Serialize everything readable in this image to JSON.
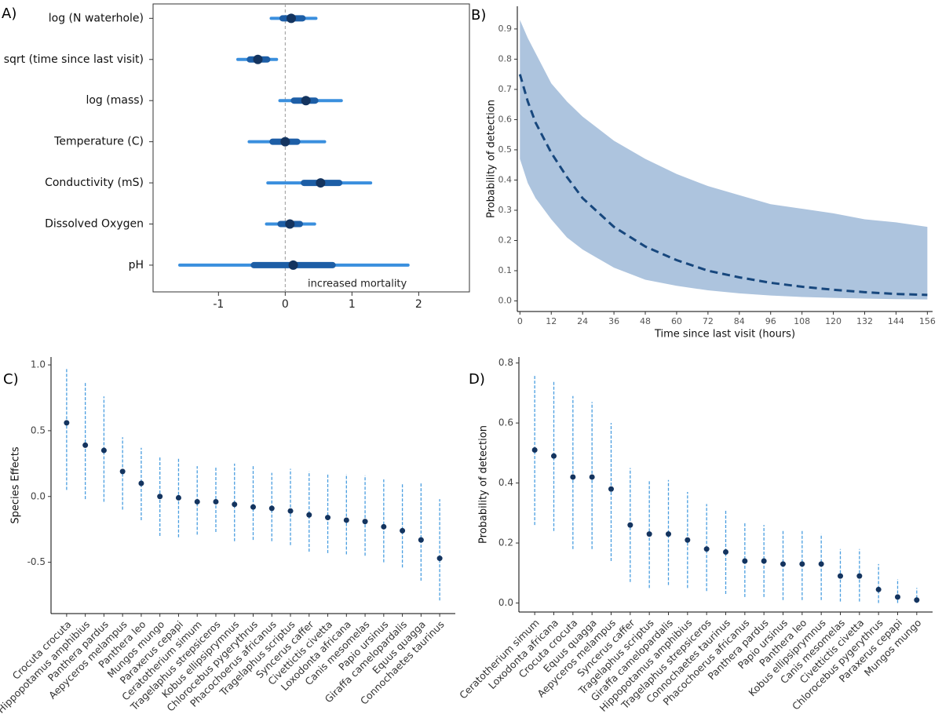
{
  "chart_data": [
    {
      "type": "forest",
      "panel_label": "A)",
      "categories": [
        "log (N waterhole)",
        "sqrt (time since last visit)",
        "log (mass)",
        "Temperature (C)",
        "Conductivity (mS)",
        "Dissolved Oxygen",
        "pH"
      ],
      "values": [
        0.09,
        -0.41,
        0.31,
        0.0,
        0.53,
        0.07,
        0.12
      ],
      "inner_interval": [
        [
          -0.04,
          0.26
        ],
        [
          -0.53,
          -0.27
        ],
        [
          0.13,
          0.45
        ],
        [
          -0.19,
          0.18
        ],
        [
          0.28,
          0.81
        ],
        [
          -0.07,
          0.22
        ],
        [
          -0.47,
          0.71
        ]
      ],
      "outer_interval": [
        [
          -0.21,
          0.46
        ],
        [
          -0.71,
          -0.13
        ],
        [
          -0.08,
          0.84
        ],
        [
          -0.54,
          0.59
        ],
        [
          -0.26,
          1.28
        ],
        [
          -0.28,
          0.44
        ],
        [
          -1.58,
          1.84
        ]
      ],
      "xlim": [
        -1.98,
        2.76
      ],
      "xticks": [
        -1,
        0,
        1,
        2
      ],
      "annotation": "increased mortality",
      "zero_line": true,
      "colors": {
        "outer": "#3a8fde",
        "inner": "#1d5ea6",
        "point": "#14345f"
      }
    },
    {
      "type": "line",
      "panel_label": "B)",
      "x": [
        0,
        3,
        6,
        12,
        18,
        24,
        36,
        48,
        60,
        72,
        84,
        96,
        108,
        120,
        132,
        144,
        156
      ],
      "values": [
        0.75,
        0.66,
        0.59,
        0.49,
        0.41,
        0.34,
        0.245,
        0.18,
        0.135,
        0.1,
        0.078,
        0.06,
        0.047,
        0.037,
        0.029,
        0.023,
        0.02
      ],
      "upper": [
        0.93,
        0.87,
        0.82,
        0.72,
        0.66,
        0.61,
        0.53,
        0.47,
        0.42,
        0.38,
        0.35,
        0.32,
        0.305,
        0.29,
        0.27,
        0.26,
        0.245
      ],
      "lower": [
        0.47,
        0.39,
        0.34,
        0.27,
        0.21,
        0.17,
        0.11,
        0.07,
        0.05,
        0.035,
        0.025,
        0.018,
        0.013,
        0.01,
        0.008,
        0.006,
        0.005
      ],
      "color": "#17477d",
      "band_color": "#adc4de",
      "xlabel": "Time since last visit (hours)",
      "ylabel": "Probability of detection",
      "xlim": [
        -1,
        158
      ],
      "ylim": [
        -0.035,
        0.975
      ],
      "xticks": [
        0,
        12,
        24,
        36,
        48,
        60,
        72,
        84,
        96,
        108,
        120,
        132,
        144,
        156
      ],
      "yticks": [
        {
          "value": 0,
          "label": "0.0"
        },
        0.1,
        0.2,
        0.3,
        0.4,
        0.5,
        0.6,
        0.7,
        0.8,
        0.9
      ]
    },
    {
      "type": "pointrange",
      "panel_label": "C)",
      "categories": [
        "Crocuta crocuta",
        "Hippopotamus amphibius",
        "Panthera pardus",
        "Aepyceros melampus",
        "Panthera leo",
        "Mungos mungo",
        "Paraxerus cepapi",
        "Ceratotherium simum",
        "Tragelaphus strepsiceros",
        "Kobus ellipsiprymnus",
        "Chlorocebus pygerythrus",
        "Phacochoerus africanus",
        "Tragelaphus scriptus",
        "Syncerus caffer",
        "Civettictis civetta",
        "Loxodonta africana",
        "Canis mesomelas",
        "Papio ursinus",
        "Giraffa camelopardalis",
        "Equus quagga",
        "Connochaetes taurinus"
      ],
      "values": [
        0.56,
        0.39,
        0.35,
        0.19,
        0.1,
        0.0,
        -0.01,
        -0.04,
        -0.04,
        -0.06,
        -0.08,
        -0.09,
        -0.11,
        -0.14,
        -0.16,
        -0.18,
        -0.19,
        -0.23,
        -0.26,
        -0.33,
        -0.47
      ],
      "lower": [
        0.05,
        -0.02,
        -0.04,
        -0.1,
        -0.18,
        -0.3,
        -0.31,
        -0.29,
        -0.27,
        -0.34,
        -0.33,
        -0.34,
        -0.37,
        -0.42,
        -0.43,
        -0.44,
        -0.45,
        -0.5,
        -0.54,
        -0.64,
        -0.79
      ],
      "upper": [
        0.97,
        0.87,
        0.76,
        0.45,
        0.37,
        0.3,
        0.29,
        0.23,
        0.23,
        0.25,
        0.23,
        0.18,
        0.21,
        0.19,
        0.17,
        0.17,
        0.16,
        0.13,
        0.1,
        0.1,
        -0.02
      ],
      "ylabel": "Species Effects",
      "ylim": [
        -0.89,
        1.06
      ],
      "yticks": [
        -0.5,
        {
          "value": 0,
          "label": "0.0"
        },
        0.5,
        {
          "value": 1,
          "label": "1.0"
        }
      ],
      "colors": {
        "point": "#14345f",
        "interval": "#4a9ee0"
      }
    },
    {
      "type": "pointrange",
      "panel_label": "D)",
      "categories": [
        "Ceratotherium simum",
        "Loxodonta africana",
        "Crocuta crocuta",
        "Equus quagga",
        "Aepyceros melampus",
        "Syncerus caffer",
        "Tragelaphus scriptus",
        "Giraffa camelopardalis",
        "Hippopotamus amphibius",
        "Tragelaphus strepsiceros",
        "Connochaetes taurinus",
        "Phacochoerus africanus",
        "Panthera pardus",
        "Papio ursinus",
        "Panthera leo",
        "Kobus ellipsiprymnus",
        "Canis mesomelas",
        "Civettictis civetta",
        "Chlorocebus pygerythrus",
        "Paraxerus cepapi",
        "Mungos mungo"
      ],
      "values": [
        0.51,
        0.49,
        0.42,
        0.42,
        0.38,
        0.26,
        0.23,
        0.23,
        0.21,
        0.18,
        0.17,
        0.14,
        0.14,
        0.13,
        0.13,
        0.13,
        0.09,
        0.09,
        0.045,
        0.02,
        0.01
      ],
      "lower": [
        0.26,
        0.24,
        0.18,
        0.18,
        0.14,
        0.07,
        0.05,
        0.06,
        0.05,
        0.04,
        0.03,
        0.02,
        0.02,
        0.01,
        0.01,
        0.01,
        0.005,
        0.005,
        0.0,
        0.0,
        0.0
      ],
      "upper": [
        0.76,
        0.74,
        0.69,
        0.67,
        0.6,
        0.45,
        0.41,
        0.41,
        0.37,
        0.33,
        0.31,
        0.27,
        0.26,
        0.24,
        0.24,
        0.23,
        0.18,
        0.18,
        0.13,
        0.08,
        0.05
      ],
      "ylabel": "Probability of detection",
      "ylim": [
        -0.03,
        0.82
      ],
      "yticks": [
        {
          "value": 0,
          "label": "0.0"
        },
        0.2,
        0.4,
        0.6,
        0.8
      ],
      "colors": {
        "point": "#14345f",
        "interval": "#4a9ee0"
      }
    }
  ]
}
